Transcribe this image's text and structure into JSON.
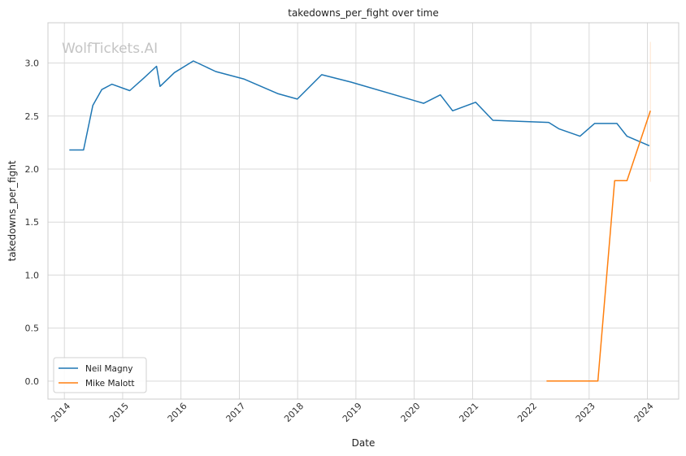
{
  "chart_data": {
    "type": "line",
    "title": "takedowns_per_fight over time",
    "xlabel": "Date",
    "ylabel": "takedowns_per_fight",
    "watermark": "WolfTickets.AI",
    "x_ticks": [
      "2014",
      "2015",
      "2016",
      "2017",
      "2018",
      "2019",
      "2020",
      "2021",
      "2022",
      "2023",
      "2024"
    ],
    "y_ticks": [
      "0.0",
      "0.5",
      "1.0",
      "1.5",
      "2.0",
      "2.5",
      "3.0"
    ],
    "xlim": [
      "2013-09-20",
      "2024-07-15"
    ],
    "ylim": [
      -0.17,
      3.38
    ],
    "grid": true,
    "legend_position": "lower-left",
    "series": [
      {
        "name": "Neil Magny",
        "color": "#1f77b4",
        "points": [
          [
            "2014-02-01",
            2.18
          ],
          [
            "2014-05-01",
            2.18
          ],
          [
            "2014-06-28",
            2.6
          ],
          [
            "2014-08-23",
            2.75
          ],
          [
            "2014-10-25",
            2.8
          ],
          [
            "2015-02-14",
            2.74
          ],
          [
            "2015-05-15",
            2.86
          ],
          [
            "2015-08-01",
            2.97
          ],
          [
            "2015-08-23",
            2.78
          ],
          [
            "2015-11-21",
            2.91
          ],
          [
            "2016-03-19",
            3.02
          ],
          [
            "2016-08-06",
            2.92
          ],
          [
            "2017-01-28",
            2.85
          ],
          [
            "2017-09-02",
            2.71
          ],
          [
            "2017-12-30",
            2.66
          ],
          [
            "2018-06-01",
            2.89
          ],
          [
            "2018-12-01",
            2.82
          ],
          [
            "2020-03-01",
            2.62
          ],
          [
            "2020-06-13",
            2.7
          ],
          [
            "2020-08-29",
            2.55
          ],
          [
            "2021-01-20",
            2.63
          ],
          [
            "2021-05-08",
            2.46
          ],
          [
            "2022-04-23",
            2.44
          ],
          [
            "2022-06-25",
            2.38
          ],
          [
            "2022-11-05",
            2.31
          ],
          [
            "2023-02-04",
            2.43
          ],
          [
            "2023-06-24",
            2.43
          ],
          [
            "2023-08-26",
            2.31
          ],
          [
            "2024-01-13",
            2.22
          ]
        ]
      },
      {
        "name": "Mike Malott",
        "color": "#ff7f0e",
        "points": [
          [
            "2022-04-09",
            0.0
          ],
          [
            "2023-02-25",
            0.0
          ],
          [
            "2023-06-10",
            1.89
          ],
          [
            "2023-08-26",
            1.89
          ],
          [
            "2024-01-20",
            2.55
          ]
        ]
      }
    ]
  }
}
